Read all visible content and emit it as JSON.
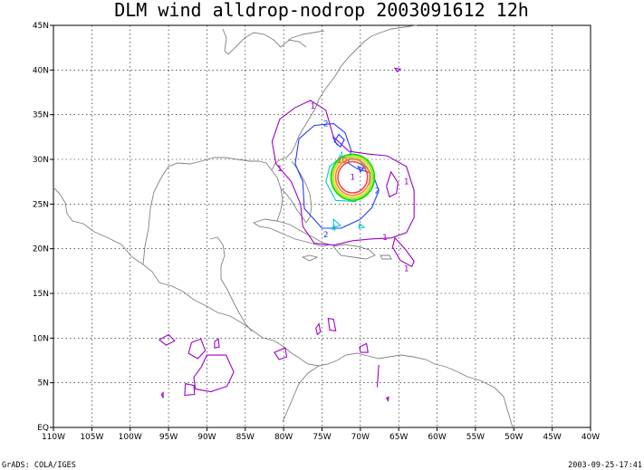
{
  "chart_data": {
    "type": "contour",
    "title": "DLM wind alldrop-nodrop 2003091612 12h",
    "xlim": [
      -110,
      -40
    ],
    "ylim": [
      0,
      45
    ],
    "x_ticks": [
      -110,
      -105,
      -100,
      -95,
      -90,
      -85,
      -80,
      -75,
      -70,
      -65,
      -60,
      -55,
      -50,
      -45,
      -40
    ],
    "x_tick_labels": [
      "110W",
      "105W",
      "100W",
      "95W",
      "90W",
      "85W",
      "80W",
      "75W",
      "70W",
      "65W",
      "60W",
      "55W",
      "50W",
      "45W",
      "40W"
    ],
    "y_ticks": [
      0,
      5,
      10,
      15,
      20,
      25,
      30,
      35,
      40,
      45
    ],
    "y_tick_labels": [
      "EQ",
      "5N",
      "10N",
      "15N",
      "20N",
      "25N",
      "30N",
      "35N",
      "40N",
      "45N"
    ],
    "grid": true,
    "contour_levels": [
      1,
      2,
      4,
      6,
      8,
      10
    ],
    "contour_labels_shown": [
      "1",
      "2",
      "4",
      "10"
    ],
    "contour_colors": {
      "1": "#a000c8",
      "2": "#1e3cff",
      "4": "#00c8c8",
      "5": "#00dc00",
      "6": "#a0e632",
      "7": "#e6dc32",
      "8": "#f08228",
      "10": "#fa3c3c"
    },
    "storm_center": {
      "lon": -71.0,
      "lat": 28.0
    },
    "left_footer": "GrADS: COLA/IGES",
    "right_footer": "2003-09-25-17:41"
  }
}
